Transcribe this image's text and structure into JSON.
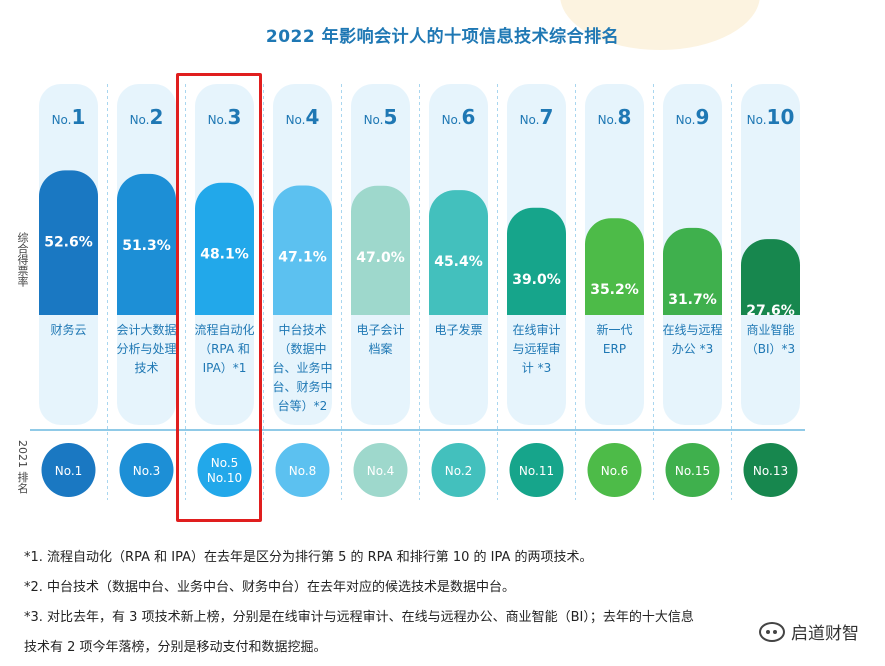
{
  "chart_data": {
    "type": "bar",
    "title": "2022 年影响会计人的十项信息技术综合排名",
    "ylabel": "综合得票率",
    "ylim": [
      0,
      60
    ],
    "rank_row_label": "2021 排名",
    "categories": [
      {
        "rank": "No.1",
        "name": [
          "财务云"
        ]
      },
      {
        "rank": "No.2",
        "name": [
          "会计大数据",
          "分析与处理",
          "技术"
        ]
      },
      {
        "rank": "No.3",
        "name": [
          "流程自动化",
          "（RPA 和",
          "IPA）*1"
        ]
      },
      {
        "rank": "No.4",
        "name": [
          "中台技术",
          "（数据中",
          "台、业务中",
          "台、财务中",
          "台等）*2"
        ]
      },
      {
        "rank": "No.5",
        "name": [
          "电子会计",
          "档案"
        ]
      },
      {
        "rank": "No.6",
        "name": [
          "电子发票"
        ]
      },
      {
        "rank": "No.7",
        "name": [
          "在线审计",
          "与远程审",
          "计 *3"
        ]
      },
      {
        "rank": "No.8",
        "name": [
          "新一代",
          "ERP"
        ]
      },
      {
        "rank": "No.9",
        "name": [
          "在线与远程",
          "办公 *3"
        ]
      },
      {
        "rank": "No.10",
        "name": [
          "商业智能",
          "（BI）*3"
        ]
      }
    ],
    "values": [
      52.6,
      51.3,
      48.1,
      47.1,
      47.0,
      45.4,
      39.0,
      35.2,
      31.7,
      27.6
    ],
    "value_labels": [
      "52.6%",
      "51.3%",
      "48.1%",
      "47.1%",
      "47.0%",
      "45.4%",
      "39.0%",
      "35.2%",
      "31.7%",
      "27.6%"
    ],
    "prev_rank": [
      [
        "No.1"
      ],
      [
        "No.3"
      ],
      [
        "No.5",
        "No.10"
      ],
      [
        "No.8"
      ],
      [
        "No.4"
      ],
      [
        "No.2"
      ],
      [
        "No.11"
      ],
      [
        "No.6"
      ],
      [
        "No.15"
      ],
      [
        "No.13"
      ]
    ],
    "colors": [
      "#1a78c2",
      "#1d8fd6",
      "#22a8ea",
      "#5cc1f0",
      "#9ed8cc",
      "#43c0bd",
      "#16a58b",
      "#4dbb48",
      "#3fb04d",
      "#17874e"
    ],
    "highlight_category": "No.3"
  },
  "notes": [
    "*1. 流程自动化（RPA 和 IPA）在去年是区分为排行第 5 的 RPA 和排行第 10 的 IPA 的两项技术。",
    "*2. 中台技术（数据中台、业务中台、财务中台）在去年对应的候选技术是数据中台。",
    "*3. 对比去年，有 3 项技术新上榜，分别是在线审计与远程审计、在线与远程办公、商业智能（BI）；去年的十大信息",
    "技术有 2 项今年落榜，分别是移动支付和数据挖掘。"
  ],
  "brand": {
    "name": "启道财智",
    "icon": "wechat-icon"
  }
}
